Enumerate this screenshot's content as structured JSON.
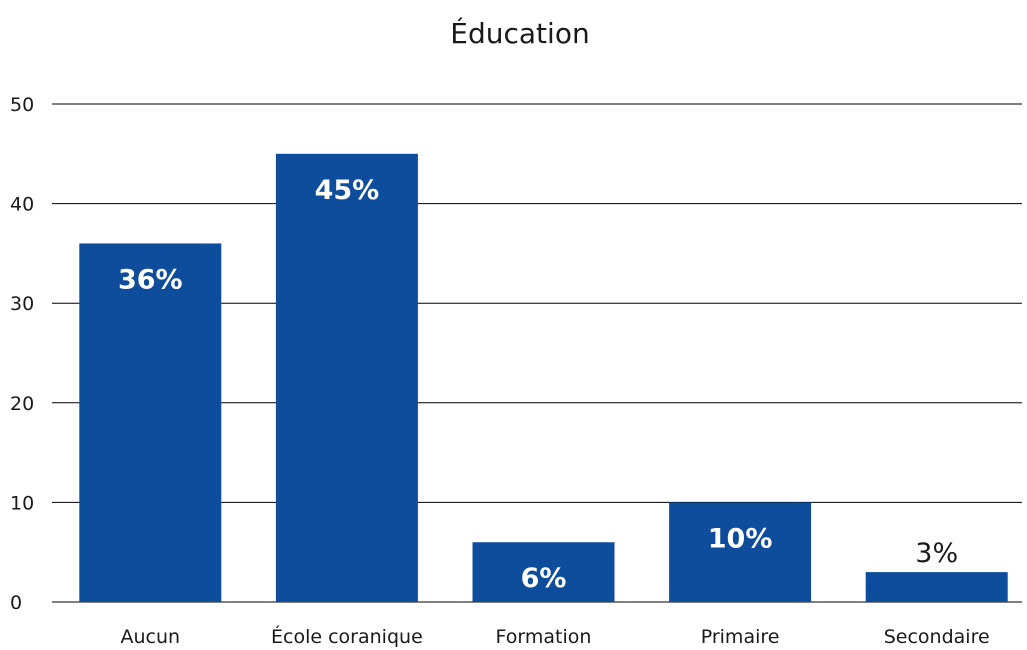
{
  "chart_data": {
    "type": "bar",
    "title": "Éducation",
    "xlabel": "",
    "ylabel": "",
    "categories": [
      "Aucun",
      "École coranique",
      "Formation",
      "Primaire",
      "Secondaire"
    ],
    "values": [
      36,
      45,
      6,
      10,
      3
    ],
    "data_labels": [
      "36%",
      "45%",
      "6%",
      "10%",
      "3%"
    ],
    "ylim": [
      0,
      50
    ],
    "yticks": [
      0,
      10,
      20,
      30,
      40,
      50
    ],
    "grid": true,
    "legend": "none",
    "colors": {
      "bar": "#0e4d9b",
      "grid": "#000000",
      "text": "#1a1a1a",
      "label_inside": "#ffffff"
    }
  }
}
